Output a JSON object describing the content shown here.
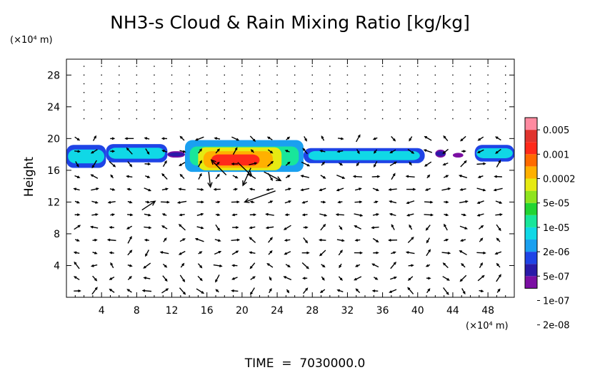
{
  "chart_data": {
    "type": "heatmap",
    "title": "NH3-s Cloud & Rain Mixing Ratio [kg/kg]",
    "ylabel": "Height",
    "y_unit": "(×10⁴ m)",
    "x_unit": "(×10⁴ m)",
    "footer": "TIME  =  7030000.0",
    "xlim": [
      0,
      51
    ],
    "ylim": [
      0,
      30
    ],
    "x_ticks": [
      4,
      8,
      12,
      16,
      20,
      24,
      28,
      32,
      36,
      40,
      44,
      48
    ],
    "x_tick_labels": [
      "4",
      "8",
      "12",
      "16",
      "20",
      "24",
      "28",
      "32",
      "36",
      "40",
      "44",
      "48"
    ],
    "y_ticks": [
      4,
      8,
      12,
      16,
      20,
      24,
      28
    ],
    "y_tick_labels": [
      "4",
      "8",
      "12",
      "16",
      "20",
      "24",
      "28"
    ],
    "colorbar": {
      "labels": [
        "0.005",
        "0.001",
        "0.0002",
        "5e-05",
        "1e-05",
        "2e-06",
        "5e-07",
        "1e-07",
        "2e-08"
      ],
      "colors": [
        "#7b0fa3",
        "#2a1aa8",
        "#1f44e6",
        "#1aa0f0",
        "#10d8e6",
        "#18e69a",
        "#22d432",
        "#8ee41e",
        "#e6ea12",
        "#ffb000",
        "#ff6a00",
        "#ff2a1a",
        "#e0342e",
        "#ff8aa0"
      ]
    },
    "cloud_band": [
      {
        "x": [
          0.0,
          4.5
        ],
        "y": [
          16.3,
          19.2
        ],
        "level": 4
      },
      {
        "x": [
          4.5,
          11.5
        ],
        "y": [
          17.0,
          19.3
        ],
        "level": 4
      },
      {
        "x": [
          11.5,
          13.5
        ],
        "y": [
          17.6,
          18.4
        ],
        "level": 1
      },
      {
        "x": [
          13.5,
          27.0
        ],
        "y": [
          15.8,
          19.8
        ],
        "level": 5
      },
      {
        "x": [
          27.0,
          40.8
        ],
        "y": [
          16.9,
          18.8
        ],
        "level": 4
      },
      {
        "x": [
          42.0,
          43.2
        ],
        "y": [
          17.6,
          18.6
        ],
        "level": 1
      },
      {
        "x": [
          44.0,
          45.2
        ],
        "y": [
          17.6,
          18.2
        ],
        "level": 0
      },
      {
        "x": [
          46.5,
          51.0
        ],
        "y": [
          17.1,
          19.2
        ],
        "level": 4
      }
    ],
    "core": [
      {
        "x": [
          15.0,
          24.5
        ],
        "y": [
          16.0,
          18.9
        ],
        "level": 8
      },
      {
        "x": [
          15.6,
          23.5
        ],
        "y": [
          16.3,
          18.4
        ],
        "level": 9
      },
      {
        "x": [
          16.5,
          22.0
        ],
        "y": [
          16.6,
          18.0
        ],
        "level": 11
      }
    ],
    "wind_field": {
      "vectors": "small arrows on a regular grid",
      "grid_spacing_x": 2,
      "grid_spacing_y": 1.6
    },
    "large_vectors": [
      {
        "x": 23.8,
        "y": 13.4,
        "dx": -3.5,
        "dy": -1.4
      },
      {
        "x": 18.2,
        "y": 15.4,
        "dx": -1.7,
        "dy": 1.9
      },
      {
        "x": 19.5,
        "y": 17.0,
        "dx": 1.6,
        "dy": -1.7
      },
      {
        "x": 16.2,
        "y": 15.8,
        "dx": 0.2,
        "dy": -1.9
      },
      {
        "x": 21.0,
        "y": 16.3,
        "dx": -0.9,
        "dy": -2.2
      },
      {
        "x": 22.5,
        "y": 15.8,
        "dx": 1.9,
        "dy": -1.1
      },
      {
        "x": 8.6,
        "y": 11.0,
        "dx": 1.5,
        "dy": 1.1
      }
    ]
  }
}
